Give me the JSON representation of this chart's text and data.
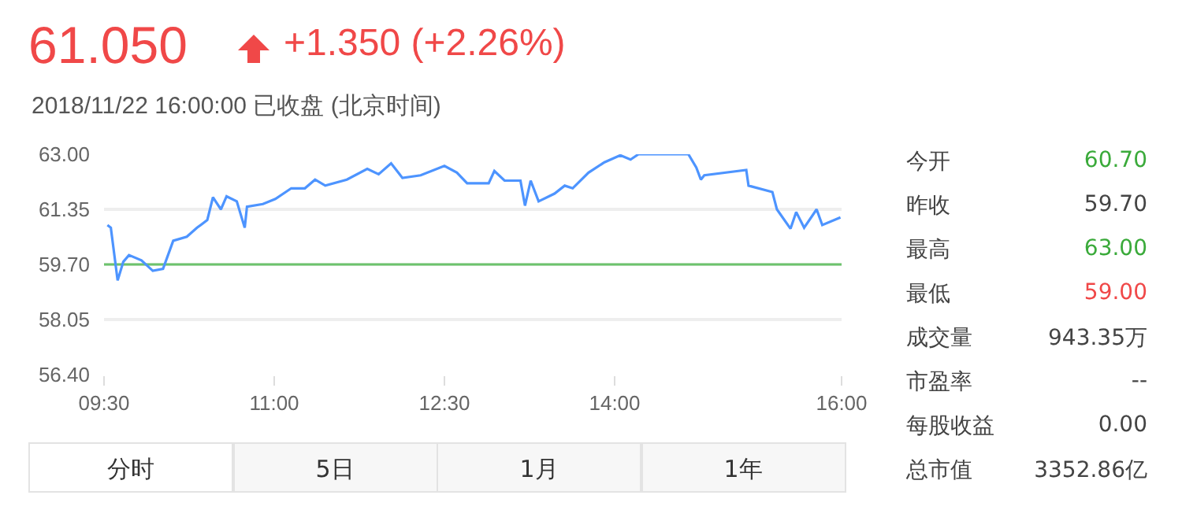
{
  "chart_data": {
    "type": "line",
    "title": "61.050",
    "subtitle": "2018/11/22 16:00:00  已收盘  (北京时间)",
    "x": [
      9.53,
      9.56,
      9.62,
      9.67,
      9.72,
      9.83,
      9.93,
      10.02,
      10.11,
      10.23,
      10.32,
      10.41,
      10.46,
      10.53,
      10.58,
      10.67,
      10.74,
      10.76,
      10.9,
      11.01,
      11.15,
      11.27,
      11.36,
      11.45,
      11.64,
      11.82,
      11.92,
      12.03,
      12.13,
      12.29,
      12.5,
      12.61,
      12.7,
      12.89,
      12.94,
      13.03,
      13.17,
      13.21,
      13.26,
      13.33,
      13.47,
      13.56,
      13.63,
      13.77,
      13.91,
      14.05,
      14.14,
      14.21,
      14.37,
      14.65,
      14.72,
      14.76,
      14.79,
      15.16,
      15.18,
      15.39,
      15.43,
      15.55,
      15.6,
      15.67,
      15.78,
      15.83,
      15.99
    ],
    "series": [
      {
        "color": "#4d94ff",
        "values": [
          60.88,
          60.8,
          59.22,
          59.78,
          59.98,
          59.82,
          59.51,
          59.57,
          60.41,
          60.53,
          60.8,
          61.03,
          61.71,
          61.35,
          61.74,
          61.59,
          60.8,
          61.43,
          61.51,
          61.66,
          61.98,
          61.98,
          62.24,
          62.06,
          62.24,
          62.56,
          62.4,
          62.73,
          62.29,
          62.37,
          62.65,
          62.45,
          62.13,
          62.13,
          62.5,
          62.21,
          62.21,
          61.46,
          62.21,
          61.59,
          61.82,
          62.06,
          61.98,
          62.45,
          62.76,
          62.97,
          62.84,
          63.0,
          63.0,
          63.0,
          62.6,
          62.24,
          62.37,
          62.53,
          62.06,
          61.87,
          61.35,
          60.77,
          61.27,
          60.8,
          61.35,
          60.88,
          61.11
        ]
      }
    ],
    "xlim": [
      9.5,
      16
    ],
    "xticks": [
      {
        "value": 9.5,
        "label": "09:30"
      },
      {
        "value": 11,
        "label": "11:00"
      },
      {
        "value": 12.5,
        "label": "12:30"
      },
      {
        "value": 14,
        "label": "14:00"
      },
      {
        "value": 16,
        "label": "16:00"
      }
    ],
    "ylim": [
      56.4,
      63.0
    ],
    "yticks": [
      {
        "value": 56.4,
        "label": "56.40"
      },
      {
        "value": 58.05,
        "label": "58.05"
      },
      {
        "value": 59.7,
        "label": "59.70"
      },
      {
        "value": 61.35,
        "label": "61.35"
      },
      {
        "value": 63.0,
        "label": "63.00"
      }
    ],
    "ref_lines": [
      {
        "axis": "y",
        "value": 59.7,
        "color": "#6cc36c",
        "line_style": "solid"
      }
    ],
    "grid": "y",
    "marker": "none",
    "line_style": "solid",
    "annotations": [
      "+1.350 (+2.26%)",
      "今开",
      "60.70",
      "昨收",
      "59.70",
      "最高",
      "63.00",
      "最低",
      "59.00",
      "成交量",
      "943.35万",
      "市盈率",
      "--",
      "每股收益",
      "0.00",
      "总市值",
      "3352.86亿",
      "分时",
      "5日",
      "1月",
      "1年"
    ]
  }
}
